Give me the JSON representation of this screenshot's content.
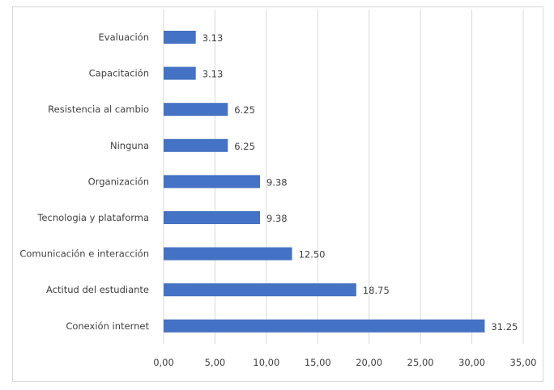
{
  "chart_data": {
    "type": "bar",
    "orientation": "horizontal",
    "categories": [
      "Evaluación",
      "Capacitación",
      "Resistencia al cambio",
      "Ninguna",
      "Organización",
      "Tecnologia y plataforma",
      "Comunicación e interacción",
      "Actitud del estudiante",
      "Conexión internet"
    ],
    "values": [
      3.13,
      3.13,
      6.25,
      6.25,
      9.38,
      9.38,
      12.5,
      18.75,
      31.25
    ],
    "data_labels": [
      "3.13",
      "3.13",
      "6.25",
      "6.25",
      "9.38",
      "9.38",
      "12.50",
      "18.75",
      "31.25"
    ],
    "xlim": [
      0,
      35
    ],
    "xticks": [
      "0,00",
      "5,00",
      "10,00",
      "15,00",
      "20,00",
      "25,00",
      "30,00",
      "35,00"
    ],
    "grid": "vertical",
    "bar_color": "#4472c4",
    "title": "",
    "xlabel": "",
    "ylabel": ""
  }
}
